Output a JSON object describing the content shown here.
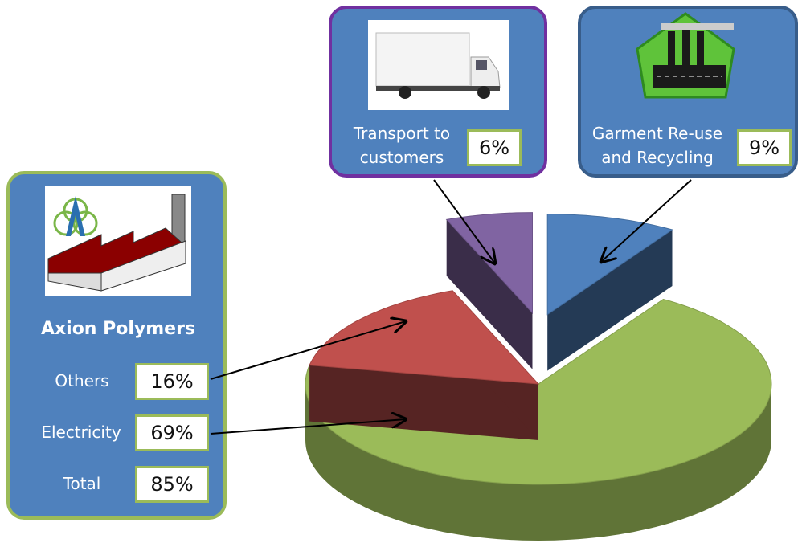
{
  "chart_data": {
    "type": "pie",
    "categories": [
      "Garment Re-use and Recycling",
      "Electricity",
      "Others",
      "Transport to customers"
    ],
    "values": [
      9,
      69,
      16,
      6
    ],
    "value_labels": [
      "9%",
      "69%",
      "16%",
      "6%"
    ],
    "colors": [
      "#4f81bd",
      "#9bbb59",
      "#c0504d",
      "#8064a2"
    ],
    "exploded": [
      true,
      false,
      false,
      true
    ],
    "group": "Axion Polymers",
    "total": {
      "label": "Total",
      "value": 85,
      "value_label": "85%"
    }
  }
}
